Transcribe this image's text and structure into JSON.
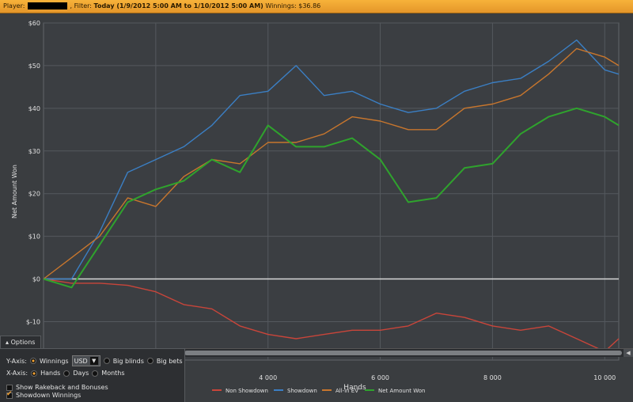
{
  "header": {
    "player_label": "Player:",
    "filter_label": ", Filter:",
    "filter_value": "Today (1/9/2012 5:00 AM to 1/10/2012 5:00 AM)",
    "winnings_label": "Winnings:",
    "winnings_value": "$36.86",
    "bar_color": "#f0a431"
  },
  "options": {
    "tab_label": "Options",
    "yaxis_label": "Y-Axis:",
    "yaxis_options": [
      "Winnings",
      "Big blinds",
      "Big bets"
    ],
    "yaxis_selected": "Winnings",
    "currency_value": "USD",
    "xaxis_label": "X-Axis:",
    "xaxis_options": [
      "Hands",
      "Days",
      "Months"
    ],
    "xaxis_selected": "Hands",
    "checkboxes": [
      {
        "label": "Show Rakeback and Bonuses",
        "checked": false
      },
      {
        "label": "Showdown Winnings",
        "checked": true
      }
    ]
  },
  "chart_data": {
    "type": "line",
    "title": "",
    "xlabel": "Hands",
    "ylabel": "Net Amount Won",
    "xlim": [
      0,
      10250
    ],
    "ylim": [
      -19,
      60
    ],
    "x_ticks": [
      4000,
      6000,
      8000,
      10000
    ],
    "x_tick_labels": [
      "4 000",
      "6 000",
      "8 000",
      "10 000"
    ],
    "y_ticks": [
      60,
      50,
      40,
      30,
      20,
      10,
      0,
      -10
    ],
    "y_tick_labels": [
      "$60",
      "$50",
      "$40",
      "$30",
      "$20",
      "$10",
      "$0",
      "$-10"
    ],
    "grid": true,
    "legend_position": "bottom",
    "series": [
      {
        "name": "Non Showdown",
        "color": "#c9453a",
        "x": [
          0,
          500,
          1000,
          1500,
          2000,
          2500,
          3000,
          3500,
          4000,
          4500,
          5000,
          5500,
          6000,
          6500,
          7000,
          7500,
          8000,
          8500,
          9000,
          9500,
          10000,
          10250
        ],
        "values": [
          0,
          -1,
          -1,
          -1.5,
          -3,
          -6,
          -7,
          -11,
          -13,
          -14,
          -13,
          -12,
          -12,
          -11,
          -8,
          -9,
          -11,
          -12,
          -11,
          -14,
          -17,
          -14
        ]
      },
      {
        "name": "Showdown",
        "color": "#3b7fc4",
        "x": [
          0,
          500,
          1000,
          1500,
          2000,
          2500,
          3000,
          3500,
          4000,
          4500,
          5000,
          5500,
          6000,
          6500,
          7000,
          7500,
          8000,
          8500,
          9000,
          9500,
          10000,
          10250
        ],
        "values": [
          0,
          0,
          11,
          25,
          28,
          31,
          36,
          43,
          44,
          50,
          43,
          44,
          41,
          39,
          40,
          44,
          46,
          47,
          51,
          56,
          49,
          48
        ]
      },
      {
        "name": "All-in EV",
        "color": "#c8762d",
        "x": [
          0,
          500,
          1000,
          1500,
          2000,
          2500,
          3000,
          3500,
          4000,
          4500,
          5000,
          5500,
          6000,
          6500,
          7000,
          7500,
          8000,
          8500,
          9000,
          9500,
          10000,
          10250
        ],
        "values": [
          0,
          5,
          10,
          19,
          17,
          24,
          28,
          27,
          32,
          32,
          34,
          38,
          37,
          35,
          35,
          40,
          41,
          43,
          48,
          54,
          52,
          50
        ]
      },
      {
        "name": "Net Amount Won",
        "color": "#2fa32d",
        "x": [
          0,
          500,
          1000,
          1500,
          2000,
          2500,
          3000,
          3500,
          4000,
          4500,
          5000,
          5500,
          6000,
          6500,
          7000,
          7500,
          8000,
          8500,
          9000,
          9500,
          10000,
          10250
        ],
        "values": [
          0,
          -2,
          8,
          18,
          21,
          23,
          28,
          25,
          36,
          31,
          31,
          33,
          28,
          18,
          19,
          26,
          27,
          34,
          38,
          40,
          38,
          36
        ]
      }
    ]
  }
}
